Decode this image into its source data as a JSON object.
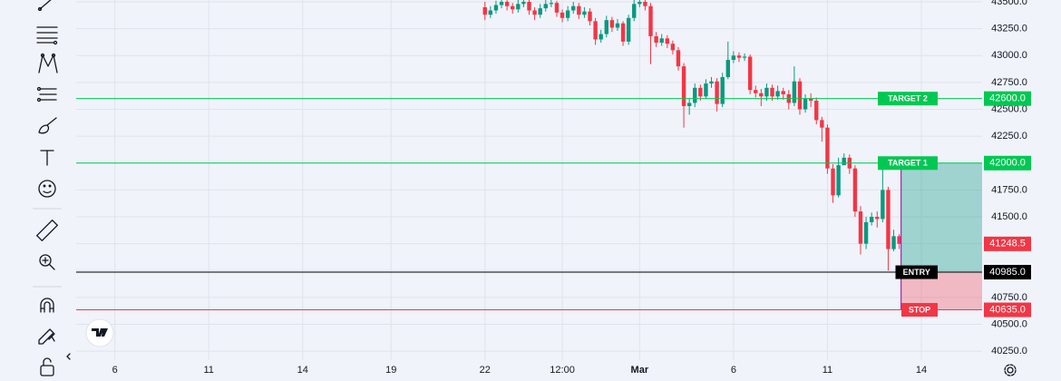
{
  "chart_data": {
    "type": "candlestick",
    "up_color": "#089981",
    "down_color": "#f23645",
    "x": [
      74,
      75,
      76,
      77,
      78,
      79,
      80,
      81,
      82,
      83,
      84,
      85,
      86,
      87,
      88,
      89,
      90,
      91,
      92,
      93,
      94,
      95,
      96,
      97,
      98,
      99,
      100,
      101,
      102,
      103,
      104,
      105,
      106,
      107,
      108,
      109,
      110,
      111,
      112,
      113,
      114,
      115,
      116,
      117,
      118,
      119,
      120,
      121,
      122,
      123,
      124,
      125,
      126,
      127,
      128,
      129,
      130,
      131,
      132,
      133,
      134,
      135,
      136,
      137,
      138,
      139,
      140,
      141,
      142,
      143,
      144,
      145,
      146,
      147,
      148,
      149
    ],
    "open": [
      43450,
      43380,
      43420,
      43470,
      43500,
      43460,
      43430,
      43480,
      43500,
      43420,
      43380,
      43440,
      43480,
      43490,
      43400,
      43350,
      43420,
      43460,
      43380,
      43410,
      43320,
      43150,
      43200,
      43330,
      43260,
      43300,
      43130,
      43350,
      43480,
      43500,
      43460,
      43180,
      43120,
      43160,
      43110,
      43050,
      42900,
      42530,
      42560,
      42700,
      42620,
      42740,
      42760,
      42550,
      42800,
      42960,
      43000,
      42980,
      42990,
      42680,
      42650,
      42620,
      42700,
      42620,
      42670,
      42640,
      42560,
      42760,
      42500,
      42600,
      42580,
      42400,
      42330,
      41950,
      41700,
      41980,
      42050,
      41950,
      41550,
      41250,
      41450,
      41500,
      41480,
      41750,
      41200,
      41320
    ],
    "high": [
      43500,
      43460,
      43510,
      43540,
      43530,
      43490,
      43520,
      43540,
      43530,
      43450,
      43480,
      43520,
      43530,
      43510,
      43430,
      43460,
      43500,
      43490,
      43450,
      43440,
      43350,
      43240,
      43370,
      43360,
      43340,
      43320,
      43380,
      43520,
      43540,
      43530,
      43490,
      43220,
      43200,
      43190,
      43140,
      43080,
      42930,
      42600,
      42740,
      42730,
      42780,
      42800,
      42790,
      42840,
      43130,
      43040,
      43030,
      43020,
      43010,
      42720,
      42690,
      42740,
      42730,
      42720,
      42700,
      42680,
      42900,
      42790,
      42640,
      42650,
      42610,
      42430,
      42360,
      41990,
      42050,
      42090,
      42080,
      41980,
      41600,
      41500,
      41540,
      41550,
      41950,
      41780,
      41380,
      41340
    ],
    "low": [
      43330,
      43350,
      43390,
      43440,
      43420,
      43390,
      43400,
      43450,
      43380,
      43330,
      43350,
      43410,
      43450,
      43360,
      43310,
      43320,
      43390,
      43340,
      43350,
      43280,
      43100,
      43120,
      43170,
      43220,
      43230,
      43090,
      43100,
      43320,
      43450,
      43420,
      42920,
      43080,
      43090,
      43070,
      43010,
      42860,
      42330,
      42450,
      42520,
      42580,
      42600,
      42700,
      42480,
      42520,
      42780,
      42930,
      42940,
      42950,
      42640,
      42610,
      42530,
      42580,
      42580,
      42590,
      42590,
      42500,
      42530,
      42450,
      42470,
      42520,
      42360,
      42200,
      41900,
      41630,
      41680,
      41990,
      41900,
      41500,
      41150,
      41200,
      41420,
      41400,
      41450,
      41000,
      41180,
      41200
    ],
    "close": [
      43380,
      43420,
      43470,
      43500,
      43460,
      43430,
      43480,
      43500,
      43420,
      43380,
      43440,
      43480,
      43490,
      43400,
      43350,
      43420,
      43460,
      43380,
      43410,
      43320,
      43150,
      43200,
      43330,
      43260,
      43300,
      43130,
      43350,
      43480,
      43500,
      43460,
      43180,
      43120,
      43160,
      43110,
      43050,
      42900,
      42530,
      42560,
      42700,
      42620,
      42740,
      42760,
      42550,
      42800,
      42960,
      43000,
      42980,
      42990,
      42680,
      42650,
      42620,
      42700,
      42620,
      42670,
      42640,
      42560,
      42760,
      42500,
      42600,
      42580,
      42400,
      42330,
      41950,
      41700,
      41980,
      42050,
      41950,
      41550,
      41250,
      41450,
      41500,
      41480,
      41750,
      41200,
      41320,
      41248.5
    ],
    "xlim": [
      0,
      164
    ],
    "xticks": [
      {
        "value": 7,
        "label": "6"
      },
      {
        "value": 24,
        "label": "11"
      },
      {
        "value": 41,
        "label": "14"
      },
      {
        "value": 57,
        "label": "19"
      },
      {
        "value": 74,
        "label": "22"
      },
      {
        "value": 88,
        "label": "12:00"
      },
      {
        "value": 102,
        "label": "Mar"
      },
      {
        "value": 119,
        "label": "6"
      },
      {
        "value": 136,
        "label": "11"
      },
      {
        "value": 153,
        "label": "14"
      }
    ],
    "ylim": [
      40167,
      43517
    ],
    "yticks": [
      {
        "value": 40250,
        "label": "40250.0"
      },
      {
        "value": 40500,
        "label": "40500.0"
      },
      {
        "value": 40750,
        "label": "40750.0"
      },
      {
        "value": 41000,
        "label": "41000.0"
      },
      {
        "value": 41250,
        "label": "41250.0"
      },
      {
        "value": 41500,
        "label": "41500.0"
      },
      {
        "value": 41750,
        "label": "41750.0"
      },
      {
        "value": 42000,
        "label": "42000.0"
      },
      {
        "value": 42250,
        "label": "42250.0"
      },
      {
        "value": 42500,
        "label": "42500.0"
      },
      {
        "value": 42750,
        "label": "42750.0"
      },
      {
        "value": 43000,
        "label": "43000.0"
      },
      {
        "value": 43250,
        "label": "43250.0"
      },
      {
        "value": 43500,
        "label": "43500.0"
      }
    ],
    "grid": true,
    "levels": {
      "names": [
        "TARGET 2",
        "TARGET 1",
        "ENTRY",
        "STOP"
      ],
      "values": [
        42600,
        42000,
        40985,
        40635
      ],
      "value_labels": [
        "42600.0",
        "42000.0",
        "40985.0",
        "40635.0"
      ],
      "colors": [
        "#00c853",
        "#00c853",
        "#000000",
        "#f23645"
      ]
    }
  }
}
